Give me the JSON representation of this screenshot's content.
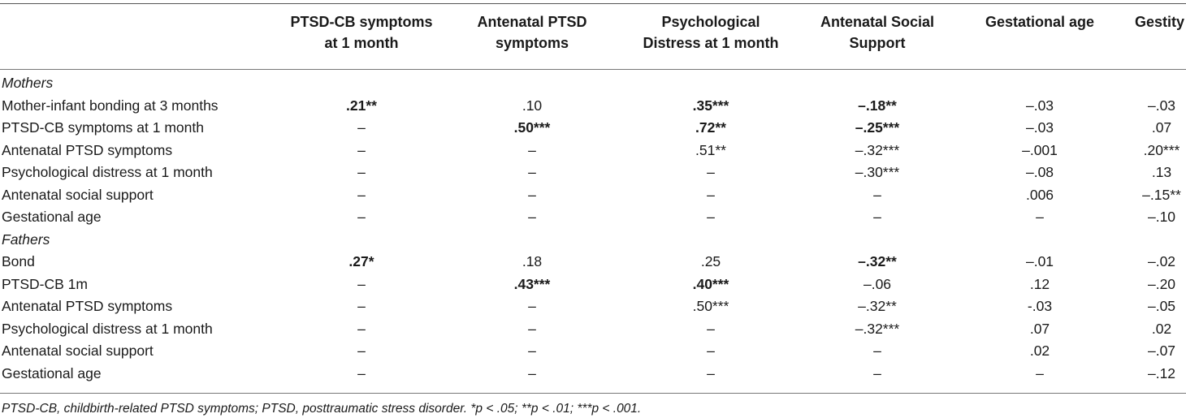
{
  "columns": [
    "PTSD-CB symptoms at 1 month",
    "Antenatal PTSD symptoms",
    "Psychological Distress at 1 month",
    "Antenatal Social Support",
    "Gestational age",
    "Gestity"
  ],
  "column_lines": [
    [
      "PTSD-CB symptoms",
      "at 1 month"
    ],
    [
      "Antenatal PTSD",
      "symptoms"
    ],
    [
      "Psychological",
      "Distress at 1 month"
    ],
    [
      "Antenatal Social",
      "Support"
    ],
    [
      "Gestational age",
      ""
    ],
    [
      "Gestity",
      ""
    ]
  ],
  "rows": [
    {
      "type": "group",
      "label": "Mothers",
      "cells": []
    },
    {
      "type": "data",
      "label": "Mother-infant bonding at 3 months",
      "cells": [
        {
          "v": ".21**",
          "b": true
        },
        {
          "v": ".10",
          "b": false
        },
        {
          "v": ".35***",
          "b": true
        },
        {
          "v": "–.18**",
          "b": true
        },
        {
          "v": "–.03",
          "b": false
        },
        {
          "v": "–.03",
          "b": false
        }
      ]
    },
    {
      "type": "data",
      "label": "PTSD-CB symptoms at 1 month",
      "cells": [
        {
          "v": "–",
          "b": false
        },
        {
          "v": ".50***",
          "b": true
        },
        {
          "v": ".72**",
          "b": true
        },
        {
          "v": "–.25***",
          "b": true
        },
        {
          "v": "–.03",
          "b": false
        },
        {
          "v": ".07",
          "b": false
        }
      ]
    },
    {
      "type": "data",
      "label": "Antenatal PTSD symptoms",
      "cells": [
        {
          "v": "–",
          "b": false
        },
        {
          "v": "–",
          "b": false
        },
        {
          "v": ".51**",
          "b": false
        },
        {
          "v": "–.32***",
          "b": false
        },
        {
          "v": "–.001",
          "b": false
        },
        {
          "v": ".20***",
          "b": false
        }
      ]
    },
    {
      "type": "data",
      "label": "Psychological distress at 1 month",
      "cells": [
        {
          "v": "–",
          "b": false
        },
        {
          "v": "–",
          "b": false
        },
        {
          "v": "–",
          "b": false
        },
        {
          "v": "–.30***",
          "b": false
        },
        {
          "v": "–.08",
          "b": false
        },
        {
          "v": ".13",
          "b": false
        }
      ]
    },
    {
      "type": "data",
      "label": "Antenatal social support",
      "cells": [
        {
          "v": "–",
          "b": false
        },
        {
          "v": "–",
          "b": false
        },
        {
          "v": "–",
          "b": false
        },
        {
          "v": "–",
          "b": false
        },
        {
          "v": ".006",
          "b": false
        },
        {
          "v": "–.15**",
          "b": false
        }
      ]
    },
    {
      "type": "data",
      "label": "Gestational age",
      "cells": [
        {
          "v": "–",
          "b": false
        },
        {
          "v": "–",
          "b": false
        },
        {
          "v": "–",
          "b": false
        },
        {
          "v": "–",
          "b": false
        },
        {
          "v": "–",
          "b": false
        },
        {
          "v": "–.10",
          "b": false
        }
      ]
    },
    {
      "type": "group",
      "label": "Fathers",
      "cells": []
    },
    {
      "type": "data",
      "label": "Bond",
      "cells": [
        {
          "v": ".27*",
          "b": true
        },
        {
          "v": ".18",
          "b": false
        },
        {
          "v": ".25",
          "b": false
        },
        {
          "v": "–.32**",
          "b": true
        },
        {
          "v": "–.01",
          "b": false
        },
        {
          "v": "–.02",
          "b": false
        }
      ]
    },
    {
      "type": "data",
      "label": "PTSD-CB 1m",
      "cells": [
        {
          "v": "–",
          "b": false
        },
        {
          "v": ".43***",
          "b": true
        },
        {
          "v": ".40***",
          "b": true
        },
        {
          "v": "–.06",
          "b": false
        },
        {
          "v": ".12",
          "b": false
        },
        {
          "v": "–.20",
          "b": false
        }
      ]
    },
    {
      "type": "data",
      "label": "Antenatal PTSD symptoms",
      "cells": [
        {
          "v": "–",
          "b": false
        },
        {
          "v": "–",
          "b": false
        },
        {
          "v": ".50***",
          "b": false
        },
        {
          "v": "–.32**",
          "b": false
        },
        {
          "v": "-.03",
          "b": false
        },
        {
          "v": "–.05",
          "b": false
        }
      ]
    },
    {
      "type": "data",
      "label": "Psychological distress at 1 month",
      "cells": [
        {
          "v": "–",
          "b": false
        },
        {
          "v": "–",
          "b": false
        },
        {
          "v": "–",
          "b": false
        },
        {
          "v": "–.32***",
          "b": false
        },
        {
          "v": ".07",
          "b": false
        },
        {
          "v": ".02",
          "b": false
        }
      ]
    },
    {
      "type": "data",
      "label": "Antenatal social support",
      "cells": [
        {
          "v": "–",
          "b": false
        },
        {
          "v": "–",
          "b": false
        },
        {
          "v": "–",
          "b": false
        },
        {
          "v": "–",
          "b": false
        },
        {
          "v": ".02",
          "b": false
        },
        {
          "v": "–.07",
          "b": false
        }
      ]
    },
    {
      "type": "data",
      "label": "Gestational age",
      "cells": [
        {
          "v": "–",
          "b": false
        },
        {
          "v": "–",
          "b": false
        },
        {
          "v": "–",
          "b": false
        },
        {
          "v": "–",
          "b": false
        },
        {
          "v": "–",
          "b": false
        },
        {
          "v": "–.12",
          "b": false
        }
      ]
    }
  ],
  "footnote": "PTSD-CB, childbirth-related PTSD symptoms; PTSD, posttraumatic stress disorder. *p < .05; **p < .01; ***p < .001."
}
